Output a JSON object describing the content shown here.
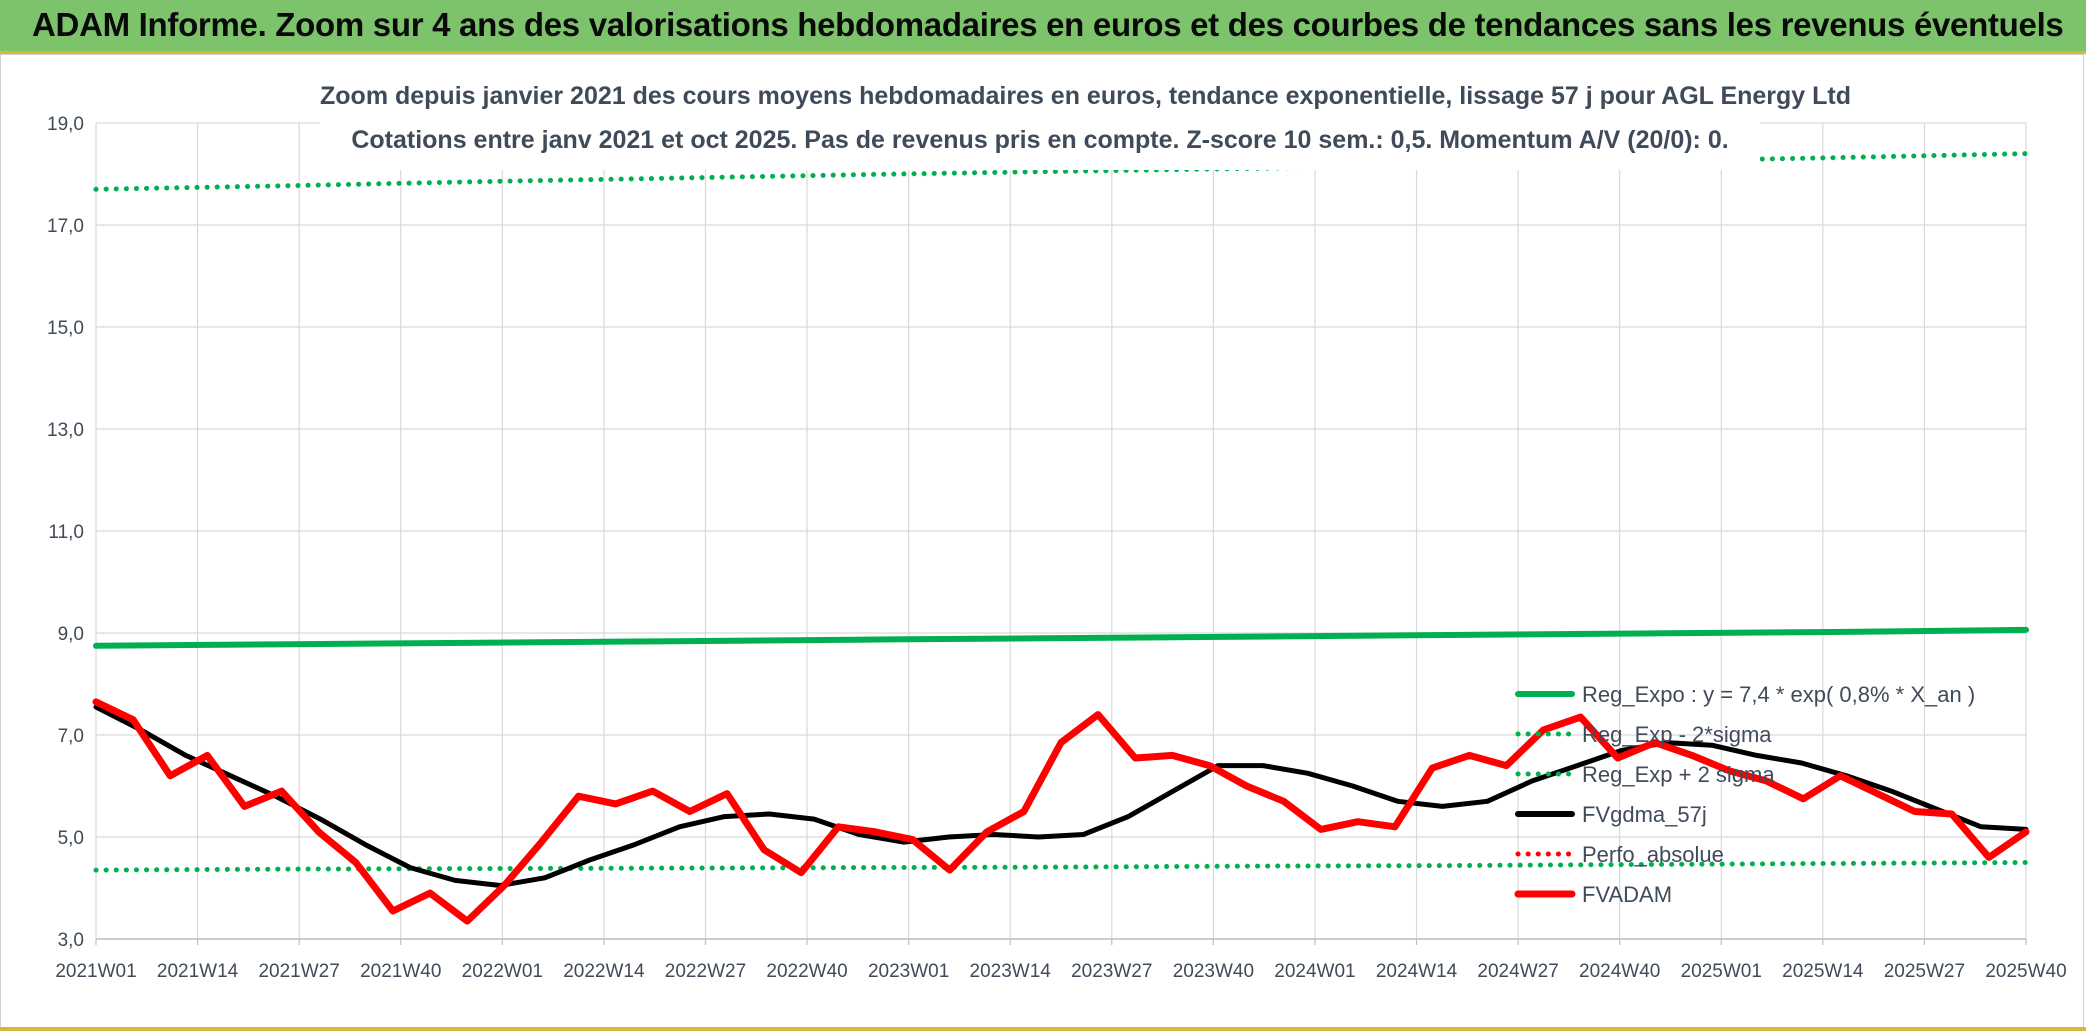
{
  "header": {
    "title": "ADAM Informe. Zoom sur 4 ans des valorisations hebdomadaires en euros et des courbes de tendances sans les revenus éventuels"
  },
  "chart_data": {
    "type": "line",
    "title_line1": "Zoom depuis janvier 2021 des cours moyens hebdomadaires en euros, tendance exponentielle, lissage 57 j pour AGL Energy Ltd",
    "title_line2": "Cotations entre janv 2021 et oct 2025. Pas de revenus pris en compte. Z-score 10 sem.: 0,5. Momentum A/V (20/0): 0.",
    "ylim": [
      3.0,
      19.0
    ],
    "y_ticks": [
      "3,0",
      "5,0",
      "7,0",
      "9,0",
      "11,0",
      "13,0",
      "15,0",
      "17,0",
      "19,0"
    ],
    "x_tick_labels": [
      "2021W01",
      "2021W14",
      "2021W27",
      "2021W40",
      "2022W01",
      "2022W14",
      "2022W27",
      "2022W40",
      "2023W01",
      "2023W14",
      "2023W27",
      "2023W40",
      "2024W01",
      "2024W14",
      "2024W27",
      "2024W40",
      "2025W01",
      "2025W14",
      "2025W27",
      "2025W40"
    ],
    "grid": true,
    "legend_position": "right",
    "series": [
      {
        "name": "Reg_Expo : y = 7,4 * exp( 0,8% *  X_an )",
        "color": "#00b050",
        "style": "solid",
        "values": [
          8.75,
          8.78,
          8.81,
          8.84,
          8.87,
          8.9,
          8.93,
          8.96,
          8.99,
          9.02,
          9.06
        ]
      },
      {
        "name": "Reg_Exp - 2*sigma",
        "color": "#00b050",
        "style": "dotted",
        "values": [
          4.35,
          4.37,
          4.38,
          4.39,
          4.4,
          4.41,
          4.43,
          4.44,
          4.46,
          4.48,
          4.5
        ]
      },
      {
        "name": "Reg_Exp + 2 sigma",
        "color": "#00b050",
        "style": "dotted",
        "values": [
          17.7,
          17.77,
          17.85,
          17.92,
          17.99,
          18.05,
          18.11,
          18.18,
          18.25,
          18.32,
          18.4
        ]
      },
      {
        "name": "FVgdma_57j",
        "color": "#000000",
        "style": "solid",
        "values": [
          7.55,
          7.1,
          6.6,
          6.2,
          5.8,
          5.35,
          4.85,
          4.4,
          4.15,
          4.05,
          4.2,
          4.55,
          4.85,
          5.2,
          5.4,
          5.45,
          5.35,
          5.05,
          4.9,
          5.0,
          5.05,
          5.0,
          5.05,
          5.4,
          5.9,
          6.4,
          6.4,
          6.25,
          6.0,
          5.7,
          5.6,
          5.7,
          6.1,
          6.4,
          6.7,
          6.85,
          6.8,
          6.6,
          6.45,
          6.2,
          5.9,
          5.55,
          5.2,
          5.15
        ]
      },
      {
        "name": "Perfo_absolue",
        "color": "#ff0000",
        "style": "dotted",
        "values": []
      },
      {
        "name": "FVADAM",
        "color": "#ff0000",
        "style": "solid",
        "values": [
          7.65,
          7.3,
          6.2,
          6.6,
          5.6,
          5.9,
          5.1,
          4.5,
          3.55,
          3.9,
          3.35,
          4.05,
          4.9,
          5.8,
          5.65,
          5.9,
          5.5,
          5.85,
          4.75,
          4.3,
          5.2,
          5.1,
          4.95,
          4.35,
          5.1,
          5.5,
          6.85,
          7.4,
          6.55,
          6.6,
          6.4,
          6.0,
          5.7,
          5.15,
          5.3,
          5.2,
          6.35,
          6.6,
          6.4,
          7.1,
          7.35,
          6.55,
          6.85,
          6.6,
          6.3,
          6.1,
          5.75,
          6.2,
          5.85,
          5.5,
          5.45,
          4.6,
          5.1
        ]
      }
    ]
  }
}
